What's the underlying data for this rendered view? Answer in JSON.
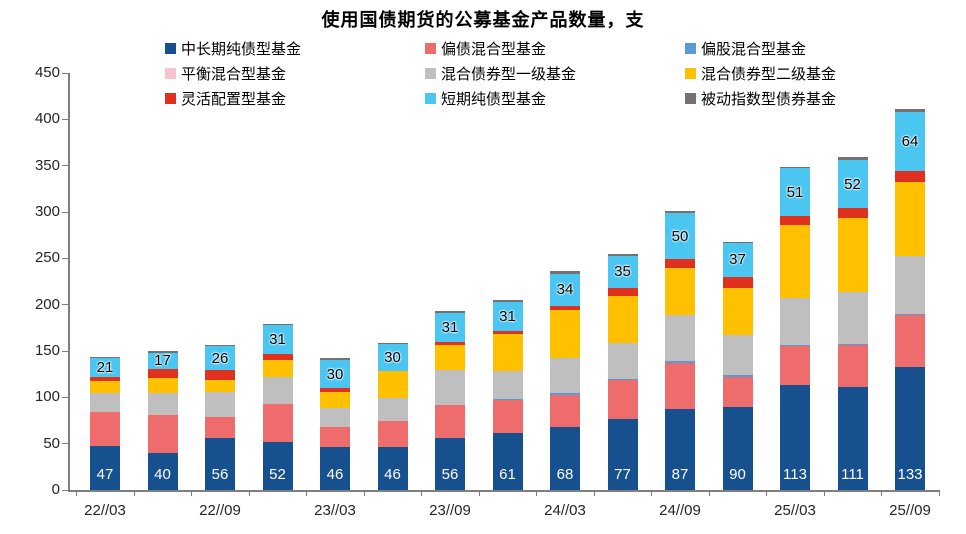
{
  "title": "使用国债期货的公募基金产品数量，支",
  "legend": [
    {
      "label": "中长期纯债型基金",
      "color": "#17508E"
    },
    {
      "label": "偏债混合型基金",
      "color": "#EE6C6C"
    },
    {
      "label": "偏股混合型基金",
      "color": "#5B9BD5"
    },
    {
      "label": "平衡混合型基金",
      "color": "#F6C3CE"
    },
    {
      "label": "混合债券型一级基金",
      "color": "#BFBFBF"
    },
    {
      "label": "混合债券型二级基金",
      "color": "#FFC000"
    },
    {
      "label": "灵活配置型基金",
      "color": "#E0301E"
    },
    {
      "label": "短期纯债型基金",
      "color": "#4AC6F0"
    },
    {
      "label": "被动指数型债券基金",
      "color": "#767171"
    }
  ],
  "chart_data": {
    "type": "bar",
    "stacked": true,
    "title": "使用国债期货的公募基金产品数量，支",
    "xlabel": "",
    "ylabel": "",
    "ylim": [
      0,
      450
    ],
    "y_ticks": [
      450,
      400,
      350,
      300,
      250,
      200,
      150,
      100,
      50,
      0
    ],
    "grid": false,
    "legend_position": "top",
    "n_bars": 15,
    "x_tick_labels": [
      "22//03",
      "22//09",
      "23//03",
      "23//09",
      "24//03",
      "24//09",
      "25//03",
      "25//09"
    ],
    "labeled_bar_indices": [
      0,
      2,
      4,
      6,
      8,
      10,
      12,
      14
    ],
    "series": [
      {
        "name": "中长期纯债型基金",
        "color": "#17508E",
        "values": [
          47,
          40,
          56,
          52,
          46,
          46,
          56,
          61,
          68,
          77,
          87,
          90,
          113,
          111,
          133
        ]
      },
      {
        "name": "偏债混合型基金",
        "color": "#EE6C6C",
        "values": [
          37,
          41,
          23,
          41,
          22,
          28,
          36,
          36,
          35,
          42,
          50,
          32,
          42,
          45,
          56
        ]
      },
      {
        "name": "偏股混合型基金",
        "color": "#5B9BD5",
        "values": [
          0,
          0,
          0,
          0,
          0,
          0,
          0,
          1,
          2,
          1,
          2,
          2,
          2,
          2,
          1
        ]
      },
      {
        "name": "平衡混合型基金",
        "color": "#F6C3CE",
        "values": [
          0,
          0,
          0,
          0,
          0,
          0,
          0,
          0,
          0,
          0,
          0,
          0,
          0,
          0,
          0
        ]
      },
      {
        "name": "混合债券型一级基金",
        "color": "#BFBFBF",
        "values": [
          21,
          24,
          27,
          29,
          21,
          25,
          37,
          30,
          37,
          39,
          50,
          43,
          50,
          56,
          63
        ]
      },
      {
        "name": "混合债券型二级基金",
        "color": "#FFC000",
        "values": [
          13,
          16,
          13,
          18,
          17,
          29,
          27,
          40,
          52,
          50,
          51,
          51,
          79,
          80,
          79
        ]
      },
      {
        "name": "灵活配置型基金",
        "color": "#E0301E",
        "values": [
          4,
          10,
          10,
          7,
          4,
          0,
          4,
          4,
          5,
          9,
          9,
          12,
          10,
          10,
          12
        ]
      },
      {
        "name": "短期纯债型基金",
        "color": "#4AC6F0",
        "values": [
          21,
          17,
          26,
          31,
          30,
          30,
          31,
          31,
          34,
          35,
          50,
          37,
          51,
          52,
          64
        ]
      },
      {
        "name": "被动指数型债券基金",
        "color": "#767171",
        "values": [
          1,
          2,
          2,
          1,
          2,
          1,
          2,
          2,
          3,
          2,
          2,
          1,
          2,
          3,
          3
        ]
      }
    ],
    "value_labels": {
      "bottom_series": {
        "index": 0,
        "name": "中长期纯债型基金",
        "values": [
          47,
          40,
          56,
          52,
          46,
          46,
          56,
          61,
          68,
          77,
          87,
          90,
          113,
          111,
          133
        ],
        "color": "#ffffff"
      },
      "top_series": {
        "index": 7,
        "name": "短期纯债型基金",
        "values": [
          21,
          17,
          26,
          31,
          30,
          30,
          31,
          31,
          34,
          35,
          50,
          37,
          51,
          52,
          64
        ],
        "color": "#000000"
      }
    }
  }
}
